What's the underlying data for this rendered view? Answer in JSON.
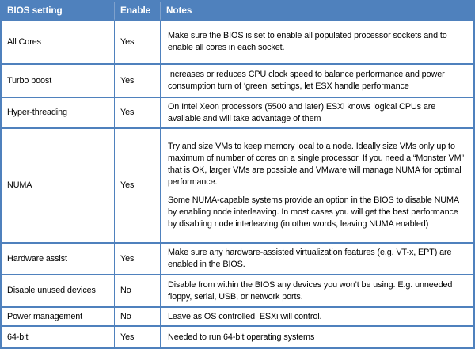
{
  "colors": {
    "header_bg": "#4f81bd",
    "header_text": "#ffffff",
    "border": "#4f81bd",
    "header_divider": "#7fa1cc",
    "body_text": "#000000",
    "row_bg": "#ffffff"
  },
  "table": {
    "columns": {
      "setting": "BIOS setting",
      "enable": "Enable",
      "notes": "Notes"
    },
    "rows": [
      {
        "setting": "All Cores",
        "enable": "Yes",
        "notes": [
          "Make sure the BIOS is set to enable all populated processor sockets and to enable all cores in each socket."
        ]
      },
      {
        "setting": "Turbo boost",
        "enable": "Yes",
        "notes": [
          "Increases or reduces CPU clock speed to balance performance and power consumption turn of ‘green’ settings, let ESX handle performance"
        ]
      },
      {
        "setting": "Hyper-threading",
        "enable": "Yes",
        "notes": [
          "On Intel Xeon processors (5500 and later) ESXi knows logical CPUs are available and will take advantage of them"
        ]
      },
      {
        "setting": "NUMA",
        "enable": "Yes",
        "notes": [
          "Try and size VMs to keep memory local to a node. Ideally size VMs only up to maximum of number of cores on a single processor. If you need a “Monster VM” that is OK, larger VMs are possible and VMware will manage NUMA for optimal performance.",
          "Some NUMA-capable systems provide an option in the BIOS to disable NUMA by enabling node interleaving.  In most cases you will get the best performance by disabling node interleaving (in other words, leaving NUMA enabled)"
        ]
      },
      {
        "setting": "Hardware assist",
        "enable": "Yes",
        "notes": [
          "Make sure any hardware-assisted virtualization features (e.g. VT-x, EPT) are enabled in the BIOS."
        ]
      },
      {
        "setting": "Disable unused devices",
        "enable": "No",
        "notes": [
          "Disable from within the BIOS any devices you won’t be using. E.g. unneeded floppy, serial, USB, or network ports."
        ]
      },
      {
        "setting": "Power management",
        "enable": "No",
        "notes": [
          "Leave as OS controlled. ESXi will control."
        ]
      },
      {
        "setting": "64-bit",
        "enable": "Yes",
        "notes": [
          "Needed to run 64-bit operating systems"
        ]
      }
    ]
  }
}
